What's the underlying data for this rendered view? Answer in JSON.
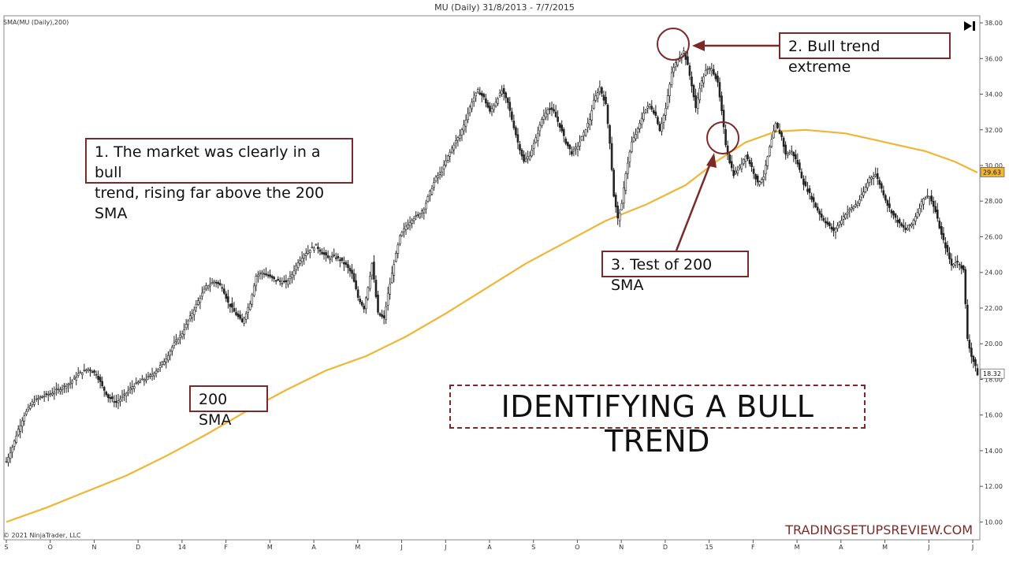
{
  "header": {
    "title": "MU (Daily)  31/8/2013 - 7/7/2015",
    "indicator_label": "SMA(MU (Daily),200)",
    "copyright": "© 2021 NinjaTrader, LLC",
    "watermark": "TRADINGSETUPSREVIEW.COM"
  },
  "annotations": {
    "note1_line1": "1. The market was clearly in a bull",
    "note1_line2": "trend, rising far above the 200 SMA",
    "note2": "2. Bull trend extreme",
    "note3": "3. Test of 200 SMA",
    "sma_label": "200 SMA",
    "big_title": "IDENTIFYING A BULL TREND"
  },
  "colors": {
    "candle": "#222222",
    "sma": "#f0b535",
    "annotation": "#7b2a2a",
    "axis": "#555555"
  },
  "chart_data": {
    "type": "line",
    "y_axis": {
      "ylim": [
        9.0,
        38.4
      ],
      "ticks": [
        "38.00",
        "36.00",
        "34.00",
        "32.00",
        "30.00",
        "28.00",
        "26.00",
        "24.00",
        "22.00",
        "20.00",
        "18.00",
        "16.00",
        "14.00",
        "12.00",
        "10.00"
      ],
      "tick_values": [
        38,
        36,
        34,
        32,
        30,
        28,
        26,
        24,
        22,
        20,
        18,
        16,
        14,
        12,
        10
      ]
    },
    "x_axis": {
      "labels": [
        "S",
        "O",
        "N",
        "D",
        "14",
        "F",
        "M",
        "A",
        "M",
        "J",
        "J",
        "A",
        "S",
        "O",
        "N",
        "D",
        "15",
        "F",
        "M",
        "A",
        "M",
        "J",
        "J"
      ]
    },
    "price_badges": [
      {
        "label": "29.63",
        "value": 29.63,
        "color": "#f0b535"
      },
      {
        "label": "18.32",
        "value": 18.32,
        "color": "#ffffff"
      }
    ],
    "series": [
      {
        "name": "Price",
        "style": "candlestick-approx",
        "points": [
          [
            0,
            13.4
          ],
          [
            3,
            14.2
          ],
          [
            6,
            15.2
          ],
          [
            9,
            16.0
          ],
          [
            13,
            16.7
          ],
          [
            17,
            17.0
          ],
          [
            22,
            17.2
          ],
          [
            27,
            17.5
          ],
          [
            32,
            17.8
          ],
          [
            36,
            18.3
          ],
          [
            41,
            18.6
          ],
          [
            45,
            18.3
          ],
          [
            48,
            17.6
          ],
          [
            51,
            17.0
          ],
          [
            55,
            16.7
          ],
          [
            59,
            17.1
          ],
          [
            63,
            17.6
          ],
          [
            67,
            17.9
          ],
          [
            71,
            18.1
          ],
          [
            76,
            18.6
          ],
          [
            80,
            19.2
          ],
          [
            84,
            20.0
          ],
          [
            88,
            20.6
          ],
          [
            92,
            21.5
          ],
          [
            96,
            22.4
          ],
          [
            100,
            23.2
          ],
          [
            104,
            23.5
          ],
          [
            108,
            23.2
          ],
          [
            111,
            22.3
          ],
          [
            114,
            21.8
          ],
          [
            118,
            21.2
          ],
          [
            122,
            22.3
          ],
          [
            125,
            23.8
          ],
          [
            128,
            24.0
          ],
          [
            131,
            23.8
          ],
          [
            134,
            23.6
          ],
          [
            137,
            23.5
          ],
          [
            140,
            23.4
          ],
          [
            143,
            23.9
          ],
          [
            146,
            24.6
          ],
          [
            149,
            25.0
          ],
          [
            152,
            25.3
          ],
          [
            155,
            25.5
          ],
          [
            158,
            25.1
          ],
          [
            161,
            24.8
          ],
          [
            164,
            24.9
          ],
          [
            167,
            24.7
          ],
          [
            170,
            24.4
          ],
          [
            173,
            23.9
          ],
          [
            176,
            22.6
          ],
          [
            179,
            22.0
          ],
          [
            181,
            23.2
          ],
          [
            183,
            24.5
          ],
          [
            186,
            21.7
          ],
          [
            189,
            21.4
          ],
          [
            191,
            22.8
          ],
          [
            194,
            24.5
          ],
          [
            197,
            26.0
          ],
          [
            200,
            26.6
          ],
          [
            203,
            27.0
          ],
          [
            206,
            27.2
          ],
          [
            209,
            27.6
          ],
          [
            212,
            28.5
          ],
          [
            215,
            29.3
          ],
          [
            218,
            29.7
          ],
          [
            221,
            30.5
          ],
          [
            224,
            31.2
          ],
          [
            227,
            31.7
          ],
          [
            230,
            32.6
          ],
          [
            233,
            33.6
          ],
          [
            236,
            34.2
          ],
          [
            239,
            33.8
          ],
          [
            242,
            33.0
          ],
          [
            245,
            33.6
          ],
          [
            248,
            34.2
          ],
          [
            251,
            33.5
          ],
          [
            253,
            32.6
          ],
          [
            256,
            31.3
          ],
          [
            259,
            30.2
          ],
          [
            262,
            30.6
          ],
          [
            265,
            31.5
          ],
          [
            268,
            32.6
          ],
          [
            271,
            33.2
          ],
          [
            274,
            33.0
          ],
          [
            277,
            32.2
          ],
          [
            280,
            31.3
          ],
          [
            283,
            30.7
          ],
          [
            286,
            31.1
          ],
          [
            289,
            31.8
          ],
          [
            292,
            32.6
          ],
          [
            294,
            33.6
          ],
          [
            297,
            34.4
          ],
          [
            300,
            33.4
          ],
          [
            302,
            31.3
          ],
          [
            304,
            28.3
          ],
          [
            306,
            27.0
          ],
          [
            308,
            27.8
          ],
          [
            310,
            29.6
          ],
          [
            313,
            31.3
          ],
          [
            316,
            32.0
          ],
          [
            319,
            33.0
          ],
          [
            322,
            33.4
          ],
          [
            325,
            32.8
          ],
          [
            327,
            32.0
          ],
          [
            330,
            33.2
          ],
          [
            333,
            35.2
          ],
          [
            336,
            36.0
          ],
          [
            339,
            36.4
          ],
          [
            341,
            35.6
          ],
          [
            343,
            34.5
          ],
          [
            345,
            33.2
          ],
          [
            347,
            34.4
          ],
          [
            350,
            35.3
          ],
          [
            353,
            35.5
          ],
          [
            356,
            34.6
          ],
          [
            358,
            33.0
          ],
          [
            360,
            31.2
          ],
          [
            362,
            30.2
          ],
          [
            364,
            29.5
          ],
          [
            367,
            29.9
          ],
          [
            370,
            30.6
          ],
          [
            373,
            29.9
          ],
          [
            376,
            29.0
          ],
          [
            379,
            29.4
          ],
          [
            382,
            31.0
          ],
          [
            385,
            32.3
          ],
          [
            388,
            31.6
          ],
          [
            390,
            30.6
          ],
          [
            393,
            30.8
          ],
          [
            396,
            30.1
          ],
          [
            399,
            29.0
          ],
          [
            402,
            28.4
          ],
          [
            405,
            27.7
          ],
          [
            408,
            27.1
          ],
          [
            411,
            26.7
          ],
          [
            414,
            26.3
          ],
          [
            417,
            26.8
          ],
          [
            420,
            27.3
          ],
          [
            423,
            27.6
          ],
          [
            426,
            27.9
          ],
          [
            429,
            28.5
          ],
          [
            432,
            29.3
          ],
          [
            435,
            29.5
          ],
          [
            438,
            28.7
          ],
          [
            441,
            27.8
          ],
          [
            444,
            27.2
          ],
          [
            447,
            26.7
          ],
          [
            450,
            26.4
          ],
          [
            453,
            26.7
          ],
          [
            456,
            27.4
          ],
          [
            459,
            28.2
          ],
          [
            462,
            28.3
          ],
          [
            465,
            27.4
          ],
          [
            468,
            26.1
          ],
          [
            471,
            25.1
          ],
          [
            473,
            24.4
          ],
          [
            475,
            24.6
          ],
          [
            477,
            24.5
          ],
          [
            479,
            24.1
          ],
          [
            481,
            20.3
          ],
          [
            483,
            19.3
          ],
          [
            485,
            18.7
          ],
          [
            486,
            18.3
          ]
        ]
      },
      {
        "name": "200 SMA",
        "style": "line",
        "points": [
          [
            0,
            10.0
          ],
          [
            20,
            10.8
          ],
          [
            40,
            11.7
          ],
          [
            60,
            12.6
          ],
          [
            80,
            13.7
          ],
          [
            100,
            14.9
          ],
          [
            120,
            16.2
          ],
          [
            140,
            17.4
          ],
          [
            160,
            18.5
          ],
          [
            180,
            19.3
          ],
          [
            200,
            20.4
          ],
          [
            220,
            21.7
          ],
          [
            240,
            23.1
          ],
          [
            260,
            24.5
          ],
          [
            280,
            25.7
          ],
          [
            300,
            26.9
          ],
          [
            320,
            27.8
          ],
          [
            340,
            28.9
          ],
          [
            355,
            30.2
          ],
          [
            370,
            31.3
          ],
          [
            385,
            31.9
          ],
          [
            400,
            32.0
          ],
          [
            420,
            31.8
          ],
          [
            440,
            31.3
          ],
          [
            460,
            30.8
          ],
          [
            475,
            30.2
          ],
          [
            486,
            29.6
          ]
        ]
      }
    ]
  }
}
